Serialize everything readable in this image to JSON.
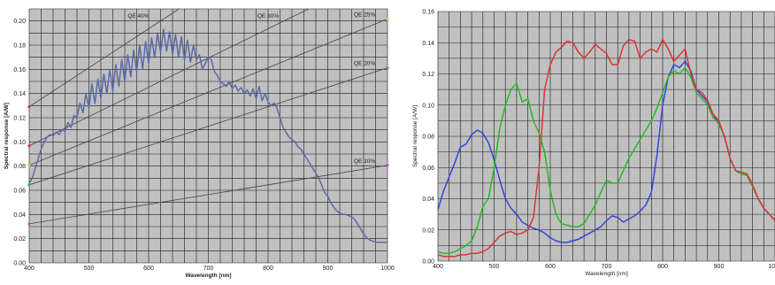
{
  "chart_data": [
    {
      "type": "line",
      "xlabel": "Wavelength [nm]",
      "ylabel": "Spectral response [A/W]",
      "xlim": [
        400,
        1000
      ],
      "ylim": [
        0,
        0.21
      ],
      "x_ticks": [
        "400",
        "500",
        "600",
        "700",
        "800",
        "900",
        "1000"
      ],
      "y_ticks": [
        "0.00",
        "0.02",
        "0.04",
        "0.06",
        "0.08",
        "0.10",
        "0.12",
        "0.14",
        "0.16",
        "0.18",
        "0.20"
      ],
      "grid": true,
      "legend": "none",
      "background": "#c0c0c0",
      "qe_reference_lines": [
        {
          "label": "QE 40%",
          "qe": 0.4
        },
        {
          "label": "QE 30%",
          "qe": 0.3
        },
        {
          "label": "QE 25%",
          "qe": 0.25
        },
        {
          "label": "QE 20%",
          "qe": 0.2
        },
        {
          "label": "QE 10%",
          "qe": 0.1
        }
      ],
      "series": [
        {
          "color": "#5a6aa8",
          "x": [
            400,
            405,
            410,
            415,
            420,
            425,
            430,
            435,
            440,
            445,
            450,
            455,
            460,
            465,
            470,
            475,
            480,
            485,
            490,
            495,
            500,
            505,
            510,
            515,
            520,
            525,
            530,
            535,
            540,
            545,
            550,
            555,
            560,
            565,
            570,
            575,
            580,
            585,
            590,
            595,
            600,
            605,
            610,
            615,
            620,
            625,
            630,
            635,
            640,
            645,
            650,
            655,
            660,
            665,
            670,
            675,
            680,
            685,
            690,
            695,
            700,
            705,
            710,
            715,
            720,
            725,
            730,
            735,
            740,
            745,
            750,
            755,
            760,
            765,
            770,
            775,
            780,
            785,
            790,
            795,
            800,
            805,
            810,
            815,
            820,
            825,
            830,
            835,
            840,
            845,
            850,
            855,
            860,
            865,
            870,
            875,
            880,
            885,
            890,
            895,
            900,
            905,
            910,
            915,
            920,
            925,
            930,
            935,
            940,
            945,
            950,
            955,
            960,
            965,
            970,
            975,
            980,
            985,
            990,
            995,
            1000
          ],
          "y": [
            0.066,
            0.07,
            0.078,
            0.086,
            0.094,
            0.1,
            0.104,
            0.106,
            0.105,
            0.108,
            0.106,
            0.11,
            0.109,
            0.116,
            0.112,
            0.122,
            0.12,
            0.132,
            0.124,
            0.14,
            0.128,
            0.148,
            0.132,
            0.152,
            0.136,
            0.156,
            0.14,
            0.16,
            0.142,
            0.164,
            0.146,
            0.168,
            0.15,
            0.172,
            0.154,
            0.176,
            0.158,
            0.18,
            0.16,
            0.183,
            0.165,
            0.186,
            0.17,
            0.19,
            0.174,
            0.193,
            0.175,
            0.191,
            0.172,
            0.189,
            0.17,
            0.187,
            0.168,
            0.184,
            0.166,
            0.18,
            0.168,
            0.172,
            0.16,
            0.165,
            0.17,
            0.168,
            0.158,
            0.155,
            0.15,
            0.148,
            0.146,
            0.15,
            0.144,
            0.147,
            0.142,
            0.145,
            0.14,
            0.143,
            0.138,
            0.144,
            0.136,
            0.146,
            0.134,
            0.14,
            0.133,
            0.13,
            0.132,
            0.128,
            0.12,
            0.112,
            0.108,
            0.104,
            0.102,
            0.1,
            0.096,
            0.094,
            0.09,
            0.086,
            0.082,
            0.078,
            0.074,
            0.07,
            0.064,
            0.058,
            0.055,
            0.05,
            0.046,
            0.043,
            0.041,
            0.04,
            0.04,
            0.039,
            0.038,
            0.036,
            0.032,
            0.028,
            0.024,
            0.021,
            0.019,
            0.018,
            0.017,
            0.017,
            0.017,
            0.017,
            0.017
          ]
        }
      ]
    },
    {
      "type": "line",
      "xlabel": "Wavelength [nm]",
      "ylabel": "Spectral response [A/W]",
      "xlim": [
        400,
        1000
      ],
      "ylim": [
        0,
        0.16
      ],
      "x_ticks": [
        "400",
        "500",
        "600",
        "700",
        "800",
        "900",
        "1000"
      ],
      "y_ticks": [
        "0.00",
        "0.02",
        "0.04",
        "0.06",
        "0.08",
        "0.10",
        "0.12",
        "0.14",
        "0.16"
      ],
      "grid": true,
      "legend": "none",
      "background": "#c0c0c0",
      "series": [
        {
          "color": "#3344dd",
          "x": [
            400,
            410,
            420,
            430,
            440,
            450,
            460,
            470,
            480,
            490,
            500,
            510,
            520,
            530,
            540,
            550,
            560,
            570,
            580,
            590,
            600,
            610,
            620,
            630,
            640,
            650,
            660,
            670,
            680,
            690,
            700,
            710,
            720,
            730,
            740,
            750,
            760,
            770,
            780,
            790,
            800,
            810,
            820,
            830,
            840,
            850,
            860,
            870,
            880,
            890,
            900,
            910,
            920,
            930,
            940,
            950,
            960,
            970,
            980,
            990,
            1000
          ],
          "y": [
            0.033,
            0.045,
            0.054,
            0.063,
            0.073,
            0.075,
            0.081,
            0.084,
            0.082,
            0.076,
            0.065,
            0.052,
            0.04,
            0.034,
            0.03,
            0.025,
            0.023,
            0.021,
            0.02,
            0.018,
            0.015,
            0.013,
            0.012,
            0.012,
            0.013,
            0.014,
            0.016,
            0.018,
            0.02,
            0.022,
            0.026,
            0.029,
            0.028,
            0.025,
            0.027,
            0.029,
            0.032,
            0.036,
            0.044,
            0.068,
            0.1,
            0.118,
            0.126,
            0.124,
            0.128,
            0.122,
            0.11,
            0.106,
            0.102,
            0.094,
            0.088,
            0.08,
            0.066,
            0.058,
            0.056,
            0.055,
            0.048,
            0.04,
            0.034,
            0.03,
            0.026
          ]
        },
        {
          "color": "#22bb22",
          "x": [
            400,
            410,
            420,
            430,
            440,
            450,
            460,
            470,
            480,
            490,
            500,
            510,
            520,
            530,
            540,
            550,
            560,
            570,
            580,
            590,
            600,
            610,
            620,
            630,
            640,
            650,
            660,
            670,
            680,
            690,
            700,
            710,
            720,
            730,
            740,
            750,
            760,
            770,
            780,
            790,
            800,
            810,
            820,
            830,
            840,
            850,
            860,
            870,
            880,
            890,
            900,
            910,
            920,
            930,
            940,
            950,
            960,
            970,
            980,
            990,
            1000
          ],
          "y": [
            0.006,
            0.005,
            0.005,
            0.006,
            0.008,
            0.01,
            0.013,
            0.022,
            0.035,
            0.04,
            0.06,
            0.085,
            0.1,
            0.11,
            0.114,
            0.102,
            0.104,
            0.09,
            0.082,
            0.07,
            0.045,
            0.03,
            0.024,
            0.023,
            0.022,
            0.022,
            0.024,
            0.03,
            0.036,
            0.044,
            0.052,
            0.05,
            0.05,
            0.058,
            0.066,
            0.072,
            0.078,
            0.084,
            0.09,
            0.098,
            0.108,
            0.118,
            0.122,
            0.12,
            0.124,
            0.118,
            0.108,
            0.104,
            0.1,
            0.092,
            0.088,
            0.08,
            0.066,
            0.058,
            0.056,
            0.055,
            0.048,
            0.04,
            0.034,
            0.03,
            0.026
          ]
        },
        {
          "color": "#dd3333",
          "x": [
            400,
            410,
            420,
            430,
            440,
            450,
            460,
            470,
            480,
            490,
            500,
            510,
            520,
            530,
            540,
            550,
            560,
            570,
            580,
            590,
            600,
            610,
            620,
            630,
            640,
            650,
            660,
            670,
            680,
            690,
            700,
            710,
            720,
            730,
            740,
            750,
            760,
            770,
            780,
            790,
            800,
            810,
            820,
            830,
            840,
            850,
            860,
            870,
            880,
            890,
            900,
            910,
            920,
            930,
            940,
            950,
            960,
            970,
            980,
            990,
            1000
          ],
          "y": [
            0.004,
            0.003,
            0.003,
            0.003,
            0.004,
            0.004,
            0.005,
            0.005,
            0.006,
            0.008,
            0.012,
            0.016,
            0.018,
            0.019,
            0.017,
            0.018,
            0.02,
            0.028,
            0.06,
            0.11,
            0.126,
            0.134,
            0.137,
            0.141,
            0.14,
            0.134,
            0.13,
            0.134,
            0.139,
            0.136,
            0.133,
            0.126,
            0.126,
            0.138,
            0.142,
            0.141,
            0.13,
            0.134,
            0.136,
            0.134,
            0.142,
            0.136,
            0.128,
            0.132,
            0.136,
            0.12,
            0.11,
            0.108,
            0.103,
            0.094,
            0.09,
            0.08,
            0.066,
            0.058,
            0.057,
            0.056,
            0.049,
            0.04,
            0.034,
            0.03,
            0.026
          ]
        }
      ]
    }
  ]
}
